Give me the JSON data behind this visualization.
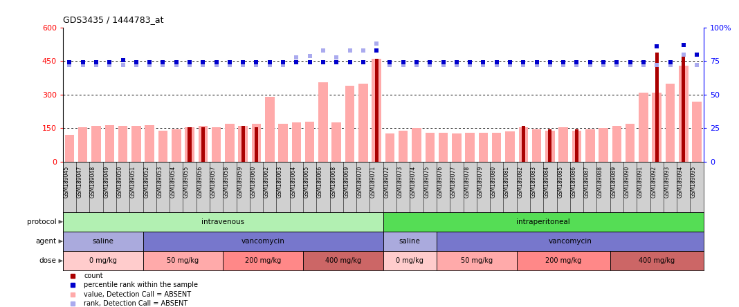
{
  "title": "GDS3435 / 1444783_at",
  "samples": [
    "GSM189045",
    "GSM189047",
    "GSM189048",
    "GSM189049",
    "GSM189050",
    "GSM189051",
    "GSM189052",
    "GSM189053",
    "GSM189054",
    "GSM189055",
    "GSM189056",
    "GSM189057",
    "GSM189058",
    "GSM189059",
    "GSM189060",
    "GSM189062",
    "GSM189063",
    "GSM189064",
    "GSM189065",
    "GSM189066",
    "GSM189068",
    "GSM189069",
    "GSM189070",
    "GSM189071",
    "GSM189072",
    "GSM189073",
    "GSM189074",
    "GSM189075",
    "GSM189076",
    "GSM189077",
    "GSM189078",
    "GSM189079",
    "GSM189080",
    "GSM189081",
    "GSM189082",
    "GSM189083",
    "GSM189084",
    "GSM189085",
    "GSM189086",
    "GSM189087",
    "GSM189088",
    "GSM189089",
    "GSM189090",
    "GSM189091",
    "GSM189092",
    "GSM189093",
    "GSM189094",
    "GSM189095"
  ],
  "values_absent": [
    120,
    155,
    160,
    163,
    160,
    160,
    163,
    140,
    145,
    155,
    160,
    155,
    170,
    160,
    170,
    290,
    170,
    175,
    180,
    355,
    175,
    340,
    350,
    460,
    125,
    140,
    150,
    130,
    130,
    125,
    130,
    130,
    130,
    135,
    155,
    145,
    140,
    155,
    140,
    145,
    150,
    160,
    170,
    310,
    310,
    350,
    430,
    270
  ],
  "counts": [
    0,
    0,
    0,
    0,
    0,
    0,
    0,
    0,
    0,
    155,
    155,
    0,
    0,
    160,
    155,
    0,
    0,
    0,
    0,
    0,
    0,
    0,
    0,
    460,
    0,
    0,
    0,
    0,
    0,
    0,
    0,
    0,
    0,
    0,
    160,
    0,
    145,
    0,
    145,
    0,
    0,
    0,
    0,
    0,
    490,
    0,
    490,
    0
  ],
  "percentile_absent": [
    72,
    72,
    72,
    72,
    72,
    72,
    72,
    72,
    72,
    72,
    72,
    72,
    72,
    72,
    72,
    72,
    72,
    78,
    79,
    83,
    78,
    83,
    83,
    88,
    72,
    72,
    72,
    72,
    72,
    72,
    72,
    72,
    72,
    72,
    72,
    72,
    72,
    72,
    72,
    72,
    72,
    72,
    72,
    72,
    72,
    72,
    80,
    72
  ],
  "percentile_rank": [
    74,
    74,
    74,
    74,
    76,
    74,
    74,
    74,
    74,
    74,
    74,
    74,
    74,
    74,
    74,
    74,
    74,
    74,
    74,
    74,
    74,
    74,
    74,
    83,
    74,
    74,
    74,
    74,
    74,
    74,
    74,
    74,
    74,
    74,
    74,
    74,
    74,
    74,
    74,
    74,
    74,
    74,
    74,
    74,
    86,
    74,
    87,
    80
  ],
  "protocol_groups": [
    {
      "label": "intravenous",
      "start": 0,
      "end": 23,
      "color": "#B2F0B2"
    },
    {
      "label": "intraperitoneal",
      "start": 24,
      "end": 47,
      "color": "#55DD55"
    }
  ],
  "agent_groups": [
    {
      "label": "saline",
      "start": 0,
      "end": 5,
      "color": "#AAAADD"
    },
    {
      "label": "vancomycin",
      "start": 6,
      "end": 23,
      "color": "#7777CC"
    },
    {
      "label": "saline",
      "start": 24,
      "end": 27,
      "color": "#AAAADD"
    },
    {
      "label": "vancomycin",
      "start": 28,
      "end": 47,
      "color": "#7777CC"
    }
  ],
  "dose_groups": [
    {
      "label": "0 mg/kg",
      "start": 0,
      "end": 5,
      "color": "#FFCCCC"
    },
    {
      "label": "50 mg/kg",
      "start": 6,
      "end": 11,
      "color": "#FFAAAA"
    },
    {
      "label": "200 mg/kg",
      "start": 12,
      "end": 17,
      "color": "#FF8888"
    },
    {
      "label": "400 mg/kg",
      "start": 18,
      "end": 23,
      "color": "#CC6666"
    },
    {
      "label": "0 mg/kg",
      "start": 24,
      "end": 27,
      "color": "#FFCCCC"
    },
    {
      "label": "50 mg/kg",
      "start": 28,
      "end": 33,
      "color": "#FFAAAA"
    },
    {
      "label": "200 mg/kg",
      "start": 34,
      "end": 40,
      "color": "#FF8888"
    },
    {
      "label": "400 mg/kg",
      "start": 41,
      "end": 47,
      "color": "#CC6666"
    }
  ],
  "ylim_left": [
    0,
    600
  ],
  "ylim_right": [
    0,
    100
  ],
  "yticks_left": [
    0,
    150,
    300,
    450,
    600
  ],
  "yticks_right": [
    0,
    25,
    50,
    75,
    100
  ],
  "color_value_absent": "#FFAAAA",
  "color_count": "#AA0000",
  "color_percentile_absent": "#AAAAEE",
  "color_percentile_rank": "#0000CC",
  "plot_bg": "#FFFFFF",
  "xtick_bg": "#D0D0D0"
}
